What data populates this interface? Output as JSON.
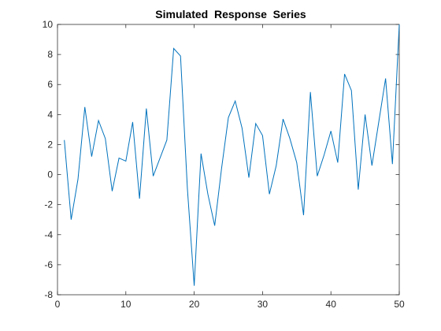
{
  "chart_data": {
    "type": "line",
    "title": "Simulated  Response  Series",
    "xlabel": "",
    "ylabel": "",
    "xlim": [
      0,
      50
    ],
    "ylim": [
      -8,
      10
    ],
    "xticks": [
      0,
      10,
      20,
      30,
      40,
      50
    ],
    "yticks": [
      -8,
      -6,
      -4,
      -2,
      0,
      2,
      4,
      6,
      8,
      10
    ],
    "grid": false,
    "legend": "none",
    "line_color": "#0072BD",
    "series": [
      {
        "x": [
          1,
          2,
          3,
          4,
          5,
          6,
          7,
          8,
          9,
          10,
          11,
          12,
          13,
          14,
          15,
          16,
          17,
          18,
          19,
          20,
          21,
          22,
          23,
          24,
          25,
          26,
          27,
          28,
          29,
          30,
          31,
          32,
          33,
          34,
          35,
          36,
          37,
          38,
          39,
          40,
          41,
          42,
          43,
          44,
          45,
          46,
          47,
          48,
          49,
          50
        ],
        "y": [
          2.3,
          -3.0,
          -0.3,
          4.5,
          1.2,
          3.6,
          2.4,
          -1.1,
          1.1,
          0.9,
          3.5,
          -1.6,
          4.4,
          -0.1,
          1.1,
          2.3,
          8.4,
          7.9,
          -0.9,
          -7.4,
          1.4,
          -1.3,
          -3.4,
          0.4,
          3.8,
          4.9,
          3.1,
          -0.2,
          3.4,
          2.6,
          -1.3,
          0.6,
          3.7,
          2.4,
          0.8,
          -2.7,
          5.5,
          -0.1,
          1.3,
          2.9,
          0.8,
          6.7,
          5.6,
          -1.0,
          4.0,
          0.6,
          3.5,
          6.4,
          0.7,
          10.0
        ]
      }
    ]
  }
}
